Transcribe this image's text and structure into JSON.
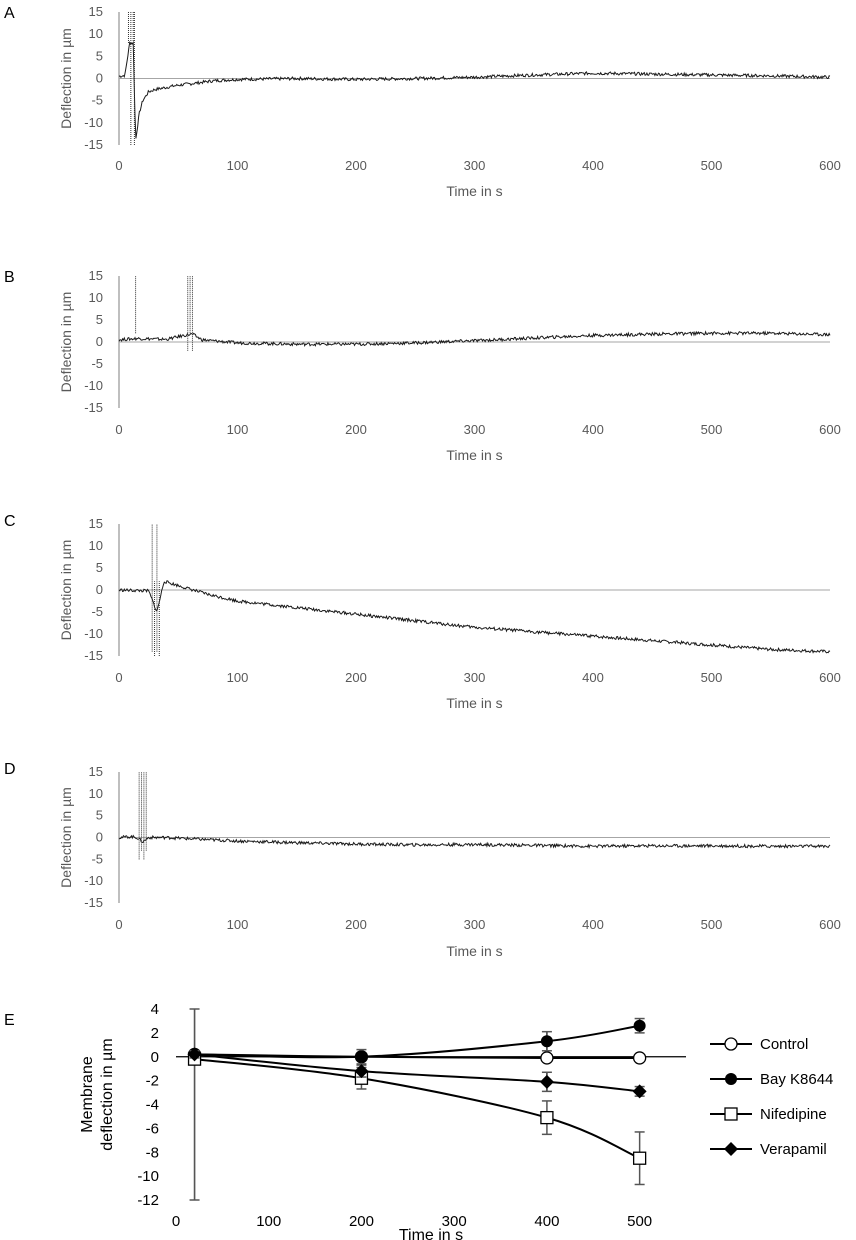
{
  "chart_data": [
    {
      "panel": "A",
      "type": "line",
      "xlabel": "Time in s",
      "ylabel": "Deflection in µm",
      "xlim": [
        0,
        600
      ],
      "ylim": [
        -15,
        15
      ],
      "xticks": [
        0,
        100,
        200,
        300,
        400,
        500,
        600
      ],
      "yticks": [
        15,
        10,
        5,
        0,
        -5,
        -10,
        -15
      ],
      "grid": false,
      "baseline_at_zero": true,
      "series": [
        {
          "x": [
            0,
            5,
            9,
            12,
            14,
            17,
            20,
            25,
            30,
            40,
            50,
            60,
            80,
            100,
            150,
            200,
            250,
            300,
            350,
            400,
            450,
            500,
            550,
            600
          ],
          "values": [
            0.5,
            0.7,
            8,
            8,
            -14,
            -8,
            -5,
            -3,
            -2.5,
            -2,
            -1.5,
            -1.2,
            -0.5,
            -0.2,
            0,
            -0.2,
            0,
            0.3,
            0.8,
            1.2,
            1,
            0.8,
            0.6,
            0.3
          ]
        }
      ]
    },
    {
      "panel": "B",
      "type": "line",
      "xlabel": "Time in s",
      "ylabel": "Deflection in µm",
      "xlim": [
        0,
        600
      ],
      "ylim": [
        -15,
        15
      ],
      "xticks": [
        0,
        100,
        200,
        300,
        400,
        500,
        600
      ],
      "yticks": [
        15,
        10,
        5,
        0,
        -5,
        -10,
        -15
      ],
      "grid": false,
      "baseline_at_zero": true,
      "series": [
        {
          "x": [
            0,
            15,
            40,
            55,
            62,
            70,
            100,
            150,
            200,
            250,
            300,
            350,
            400,
            450,
            500,
            550,
            600
          ],
          "values": [
            0.5,
            0.8,
            0.6,
            1.5,
            1.8,
            0.5,
            -0.2,
            -0.5,
            -0.5,
            -0.2,
            0.3,
            0.9,
            1.5,
            1.8,
            2.0,
            2.0,
            1.7
          ]
        }
      ]
    },
    {
      "panel": "C",
      "type": "line",
      "xlabel": "Time in s",
      "ylabel": "Deflection in µm",
      "xlim": [
        0,
        600
      ],
      "ylim": [
        -15,
        15
      ],
      "xticks": [
        0,
        100,
        200,
        300,
        400,
        500,
        600
      ],
      "yticks": [
        15,
        10,
        5,
        0,
        -5,
        -10,
        -15
      ],
      "grid": false,
      "baseline_at_zero": true,
      "series": [
        {
          "x": [
            0,
            25,
            32,
            38,
            50,
            75,
            100,
            150,
            200,
            250,
            300,
            350,
            400,
            450,
            500,
            550,
            600
          ],
          "values": [
            0,
            -0.2,
            -5,
            2,
            1,
            -1,
            -2.5,
            -4,
            -5.5,
            -7,
            -8.5,
            -9.5,
            -10.5,
            -11.5,
            -12.5,
            -13.5,
            -14
          ]
        }
      ]
    },
    {
      "panel": "D",
      "type": "line",
      "xlabel": "Time in s",
      "ylabel": "Deflection in µm",
      "xlim": [
        0,
        600
      ],
      "ylim": [
        -15,
        15
      ],
      "xticks": [
        0,
        100,
        200,
        300,
        400,
        500,
        600
      ],
      "yticks": [
        15,
        10,
        5,
        0,
        -5,
        -10,
        -15
      ],
      "grid": false,
      "baseline_at_zero": true,
      "series": [
        {
          "x": [
            0,
            10,
            15,
            20,
            25,
            40,
            60,
            100,
            150,
            200,
            250,
            300,
            350,
            400,
            450,
            500,
            550,
            600
          ],
          "values": [
            0,
            0.2,
            0,
            -1,
            0,
            0,
            -0.3,
            -0.8,
            -1.2,
            -1.5,
            -1.7,
            -1.6,
            -1.8,
            -2.0,
            -1.9,
            -1.9,
            -2.0,
            -2.0
          ]
        }
      ]
    },
    {
      "panel": "E",
      "type": "line",
      "xlabel": "Time in s",
      "ylabel_lines": [
        "Membrane",
        "deflection in µm"
      ],
      "xlim": [
        0,
        550
      ],
      "ylim": [
        -12,
        4
      ],
      "xticks": [
        0,
        100,
        200,
        300,
        400,
        500
      ],
      "yticks": [
        4,
        2,
        0,
        -2,
        -4,
        -6,
        -8,
        -10,
        -12
      ],
      "grid": false,
      "legend_position": "right",
      "x": [
        20,
        200,
        400,
        500
      ],
      "series": [
        {
          "name": "Control",
          "marker": "circle-open",
          "values": [
            0.2,
            0,
            -0.1,
            -0.1
          ],
          "errors": [
            0.2,
            0.2,
            0.2,
            0.2
          ]
        },
        {
          "name": "Bay K8644",
          "marker": "circle-filled",
          "values": [
            0.2,
            0,
            1.3,
            2.6
          ],
          "errors": [
            0.3,
            0.6,
            0.8,
            0.6
          ]
        },
        {
          "name": "Nifedipine",
          "marker": "square-open",
          "values": [
            -0.2,
            -1.8,
            -5.1,
            -8.5
          ],
          "errors": [
            12,
            0.9,
            1.4,
            2.2
          ]
        },
        {
          "name": "Verapamil",
          "marker": "diamond-filled",
          "values": [
            0.2,
            -1.2,
            -2.1,
            -2.9
          ],
          "errors": [
            0.3,
            0.5,
            0.8,
            0.4
          ]
        }
      ]
    }
  ]
}
